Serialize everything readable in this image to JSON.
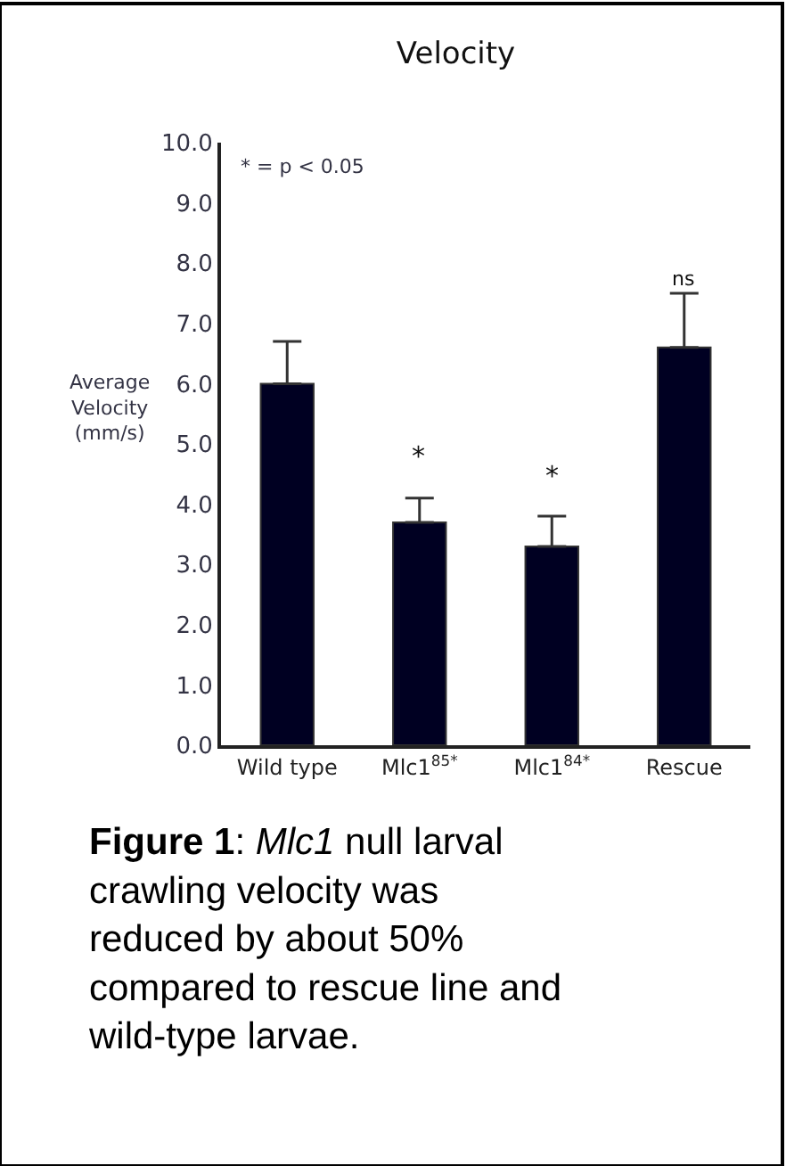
{
  "chart_data": {
    "type": "bar",
    "title": "Velocity",
    "ylabel": "Average Velocity (mm/s)",
    "categories": [
      "Wild type",
      "Mlc1$^{85*}$",
      "Mlc1$^{84*}$",
      "Rescue"
    ],
    "values": [
      6.0,
      3.7,
      3.3,
      6.6
    ],
    "value_labels": [
      null,
      "*",
      "*",
      "ns"
    ],
    "errors": [
      [
        6.0,
        6.7
      ],
      [
        3.7,
        4.1
      ],
      [
        3.3,
        3.8
      ],
      [
        6.6,
        7.5
      ]
    ],
    "color": "#000022",
    "ylim": [
      0,
      10
    ],
    "yticks": [
      {
        "value": 0,
        "label": "0.0"
      },
      {
        "value": 1,
        "label": "1.0"
      },
      {
        "value": 2,
        "label": "2.0"
      },
      {
        "value": 3,
        "label": "3.0"
      },
      {
        "value": 4,
        "label": "4.0"
      },
      {
        "value": 5,
        "label": "5.0"
      },
      {
        "value": 6,
        "label": "6.0"
      },
      {
        "value": 7,
        "label": "7.0"
      },
      {
        "value": 8,
        "label": "8.0"
      },
      {
        "value": 9,
        "label": "9.0"
      },
      {
        "value": 10,
        "label": "10.0"
      }
    ],
    "annotations": [
      "* = p < 0.05",
      "Figure 1: Mlc1 null larval crawling velocity was reduced by about 50% compared to rescue line and wild-type larvae."
    ]
  }
}
